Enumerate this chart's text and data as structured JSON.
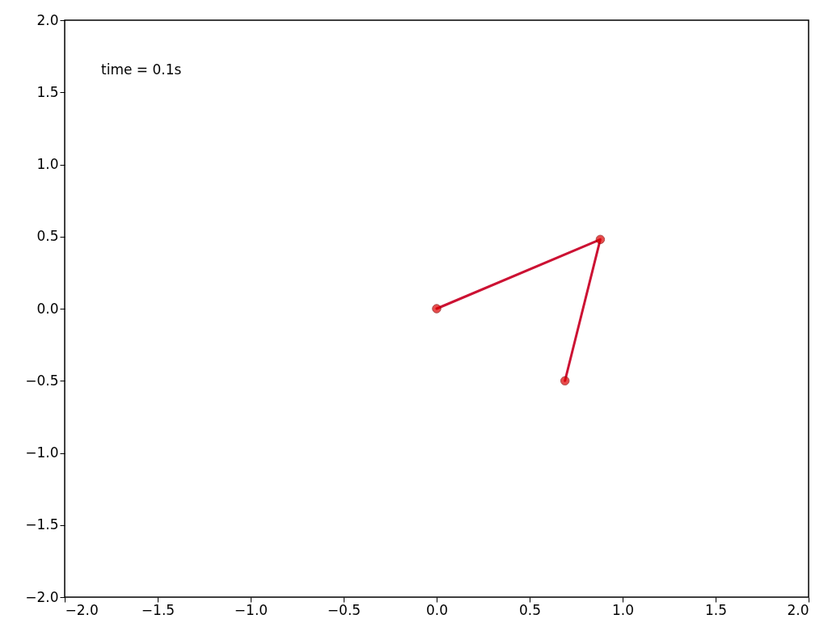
{
  "chart_data": {
    "type": "line",
    "x": [
      0.0,
      0.88,
      0.69
    ],
    "series": [
      {
        "color": "#cc1133",
        "values": [
          0.0,
          0.48,
          -0.5
        ]
      }
    ],
    "xlim": [
      -2.0,
      2.0
    ],
    "ylim": [
      -2.0,
      2.0
    ],
    "xticks": [
      {
        "value": -2,
        "label": "−2.0"
      },
      {
        "value": -1.5,
        "label": "−1.5"
      },
      {
        "value": -1,
        "label": "−1.0"
      },
      {
        "value": -0.5,
        "label": "−0.5"
      },
      {
        "value": 0,
        "label": "0.0"
      },
      {
        "value": 0.5,
        "label": "0.5"
      },
      {
        "value": 1,
        "label": "1.0"
      },
      {
        "value": 1.5,
        "label": "1.5"
      },
      {
        "value": 2,
        "label": "2.0"
      }
    ],
    "yticks": [
      {
        "value": -2,
        "label": "−2.0"
      },
      {
        "value": -1.5,
        "label": "−1.5"
      },
      {
        "value": -1,
        "label": "−1.0"
      },
      {
        "value": -0.5,
        "label": "−0.5"
      },
      {
        "value": 0,
        "label": "0.0"
      },
      {
        "value": 0.5,
        "label": "0.5"
      },
      {
        "value": 1,
        "label": "1.0"
      },
      {
        "value": 1.5,
        "label": "1.5"
      },
      {
        "value": 2,
        "label": "2.0"
      }
    ],
    "annotations": [
      "time = 0.1s"
    ],
    "marker": "circle",
    "line_style": "solid",
    "grid": false
  }
}
